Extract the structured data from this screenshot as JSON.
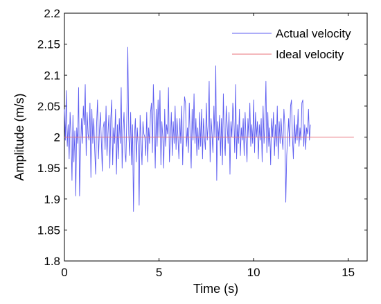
{
  "chart_data": {
    "type": "line",
    "xlabel": "Time (s)",
    "ylabel": "Amplitude   (m/s)",
    "xlim": [
      0,
      16
    ],
    "ylim": [
      1.8,
      2.2
    ],
    "xticks": [
      0,
      5,
      10,
      15
    ],
    "yticks": [
      1.8,
      1.85,
      1.9,
      1.95,
      2,
      2.05,
      2.1,
      2.15,
      2.2
    ],
    "xtick_labels": [
      "0",
      "5",
      "10",
      "15"
    ],
    "ytick_labels": [
      "1.8",
      "1.85",
      "1.9",
      "1.95",
      "2",
      "2.05",
      "2.1",
      "2.15",
      "2.2"
    ],
    "grid": false,
    "legend_position": "top-right",
    "series": [
      {
        "name": "Actual velocity",
        "color": "#5b5bf0",
        "x_start": 0,
        "x_step": 0.05,
        "values": [
          2.045,
          1.995,
          2.075,
          1.985,
          2.02,
          1.965,
          2.04,
          2.0,
          1.93,
          2.035,
          1.96,
          2.01,
          1.905,
          2.015,
          1.99,
          2.08,
          1.905,
          1.975,
          2.03,
          1.99,
          2.05,
          2.02,
          2.085,
          1.97,
          2.04,
          2.005,
          1.995,
          2.055,
          1.935,
          2.045,
          1.99,
          2.03,
          1.98,
          1.94,
          2.02,
          2.06,
          1.965,
          2.01,
          2.04,
          1.995,
          1.945,
          2.015,
          2.025,
          1.98,
          2.05,
          1.97,
          2.005,
          2.035,
          1.95,
          2.03,
          2.06,
          1.955,
          2.015,
          1.99,
          2.045,
          1.94,
          2.02,
          1.965,
          2.03,
          1.99,
          2.08,
          1.95,
          2.01,
          2.04,
          1.975,
          1.96,
          2.035,
          2.145,
          2.005,
          1.97,
          2.04,
          1.955,
          2.02,
          1.88,
          2.0,
          2.03,
          1.96,
          2.015,
          1.985,
          1.89,
          2.035,
          1.995,
          1.955,
          2.025,
          2.005,
          2.0,
          1.97,
          2.04,
          1.96,
          2.015,
          1.99,
          2.04,
          2.055,
          1.975,
          2.085,
          2.03,
          1.95,
          2.045,
          1.985,
          2.06,
          2.0,
          2.075,
          1.955,
          2.025,
          2.0,
          1.95,
          2.045,
          1.985,
          2.02,
          2.005,
          2.08,
          1.96,
          1.995,
          2.04,
          1.97,
          2.025,
          1.99,
          2.05,
          1.98,
          2.03,
          2.0,
          1.965,
          2.03,
          1.99,
          2.05,
          1.955,
          2.02,
          2.065,
          2.055,
          1.985,
          2.015,
          1.975,
          2.055,
          1.995,
          1.95,
          2.045,
          1.995,
          2.07,
          1.99,
          2.03,
          1.97,
          2.015,
          1.98,
          2.04,
          1.985,
          2.045,
          1.965,
          2.03,
          2.0,
          1.98,
          2.055,
          1.995,
          2.02,
          2.09,
          1.96,
          2.03,
          2.005,
          1.975,
          2.05,
          2.0,
          2.115,
          1.93,
          2.025,
          1.995,
          2.035,
          1.97,
          2.03,
          1.955,
          2.07,
          1.995,
          1.97,
          2.05,
          2.02,
          1.99,
          2.04,
          1.94,
          2.025,
          2.0,
          2.055,
          2.035,
          1.975,
          2.085,
          1.965,
          2.02,
          1.99,
          2.045,
          1.97,
          2.015,
          1.995,
          2.03,
          1.97,
          2.04,
          1.995,
          1.96,
          2.03,
          2.0,
          2.055,
          1.985,
          2.02,
          1.99,
          2.06,
          1.975,
          2.04,
          2.0,
          2.025,
          1.965,
          2.02,
          1.995,
          2.03,
          1.96,
          2.05,
          1.99,
          2.02,
          2.09,
          1.975,
          2.04,
          1.985,
          2.015,
          1.955,
          2.03,
          2.0,
          2.04,
          1.97,
          2.02,
          1.985,
          2.05,
          1.965,
          2.025,
          1.99,
          2.03,
          2.0,
          1.98,
          2.045,
          2.02,
          1.895,
          1.97,
          2.0,
          2.03,
          1.985,
          2.05,
          2.06,
          2.0,
          1.965,
          2.035,
          1.99,
          2.02,
          1.995,
          2.045,
          1.985,
          2.015,
          1.995,
          2.055,
          2.06,
          1.985,
          2.02,
          1.98,
          2.015,
          2.005,
          2.045,
          1.995,
          2.02
        ]
      },
      {
        "name": "Ideal velocity",
        "color": "#e8707a",
        "x": [
          0,
          15.3
        ],
        "values": [
          2.0,
          2.0
        ]
      }
    ]
  }
}
